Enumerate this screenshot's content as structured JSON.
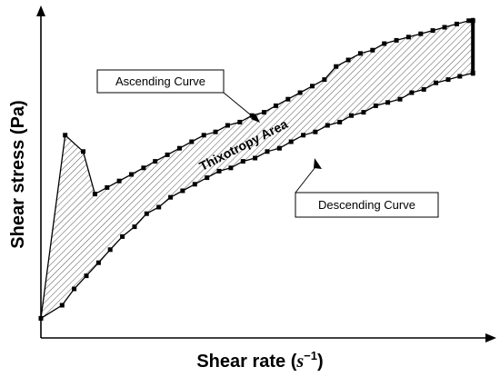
{
  "figure": {
    "x_axis_title_prefix": "Shear rate (",
    "x_axis_title_unit_base": "s",
    "x_axis_title_unit_exp": "−1",
    "x_axis_title_suffix": ")",
    "y_axis_title": "Shear stress (Pa)",
    "region_label": "Thixotropy Area",
    "ascending_label": "Ascending Curve",
    "descending_label": "Descending Curve",
    "colors": {
      "line": "#000000",
      "hatch": "#555555",
      "background": "#ffffff"
    }
  },
  "chart_data": {
    "type": "line",
    "title": "",
    "xlabel": "Shear rate (s−1)",
    "ylabel": "Shear stress (Pa)",
    "xlim": [
      0,
      100
    ],
    "ylim": [
      0,
      100
    ],
    "ticks_shown": false,
    "grid": false,
    "fill_between_series": "hatched",
    "series": [
      {
        "name": "Ascending Curve",
        "x": [
          0,
          5.4,
          9.4,
          12.0,
          14.7,
          17.4,
          20.1,
          22.8,
          25.4,
          28.1,
          30.8,
          33.5,
          36.2,
          38.8,
          41.5,
          44.2,
          46.9,
          49.6,
          52.2,
          54.9,
          57.6,
          60.3,
          63.0,
          65.6,
          68.3,
          71.0,
          73.7,
          76.3,
          79.0,
          81.7,
          84.4,
          87.1,
          89.7,
          92.4,
          95.1,
          96.0
        ],
        "y": [
          6,
          62,
          57,
          44,
          46,
          48,
          50,
          52,
          54,
          56,
          58,
          60,
          62,
          63,
          65,
          66,
          68,
          69,
          71,
          73,
          75,
          77,
          79,
          83,
          85,
          87,
          88,
          90,
          91,
          92,
          93,
          94,
          95,
          96,
          97,
          97
        ]
      },
      {
        "name": "Descending Curve",
        "x": [
          0,
          4.7,
          7.4,
          10.1,
          12.8,
          15.4,
          18.1,
          20.8,
          23.5,
          26.2,
          28.8,
          31.5,
          34.2,
          36.9,
          39.6,
          42.2,
          44.9,
          47.6,
          50.3,
          53.0,
          55.6,
          58.3,
          61.0,
          63.7,
          66.4,
          69.0,
          71.7,
          74.4,
          77.1,
          79.8,
          82.4,
          85.1,
          87.8,
          90.5,
          93.1,
          96.0
        ],
        "y": [
          6,
          10,
          15,
          19,
          23,
          27,
          31,
          34,
          38,
          40,
          43,
          45,
          47,
          49,
          51,
          52,
          54,
          55,
          57,
          58,
          60,
          62,
          63,
          65,
          66,
          68,
          69,
          71,
          72,
          73,
          75,
          76,
          78,
          79,
          80,
          81
        ]
      }
    ]
  }
}
